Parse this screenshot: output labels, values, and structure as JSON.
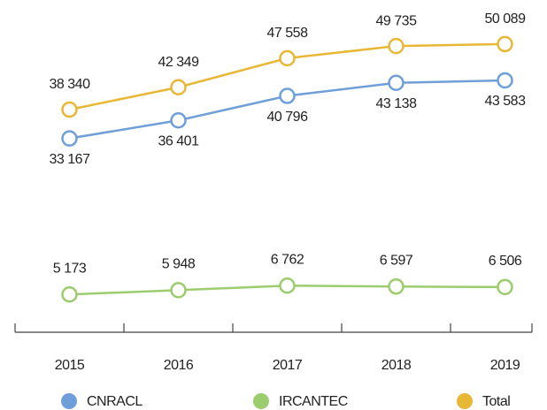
{
  "chart_data": {
    "type": "line",
    "categories": [
      "2015",
      "2016",
      "2017",
      "2018",
      "2019"
    ],
    "series": [
      {
        "name": "CNRACL",
        "color": "#6f9fd8",
        "values": [
          33167,
          36401,
          40796,
          43138,
          43583
        ],
        "value_labels": [
          "33 167",
          "36 401",
          "40 796",
          "43 138",
          "43 583"
        ]
      },
      {
        "name": "IRCANTEC",
        "color": "#9ccc6e",
        "values": [
          5173,
          5948,
          6762,
          6597,
          6506
        ],
        "value_labels": [
          "5 173",
          "5 948",
          "6 762",
          "6 597",
          "6 506"
        ]
      },
      {
        "name": "Total",
        "color": "#e8b735",
        "values": [
          38340,
          42349,
          47558,
          49735,
          50089
        ],
        "value_labels": [
          "38 340",
          "42 349",
          "47 558",
          "49 735",
          "50 089"
        ]
      }
    ],
    "ylim": [
      -1600,
      58000
    ]
  }
}
